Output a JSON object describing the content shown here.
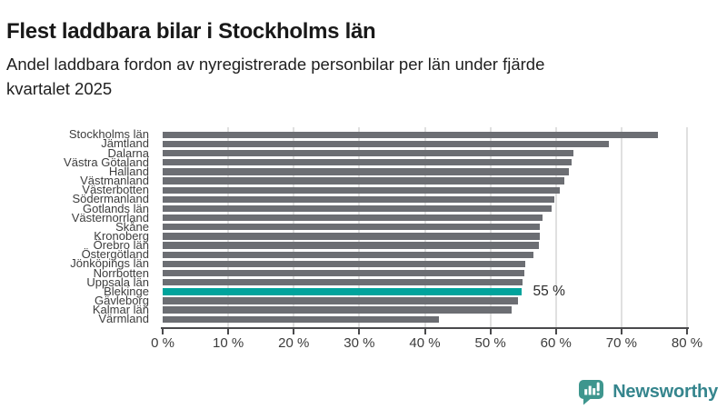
{
  "header": {
    "title": "Flest laddbara bilar i Stockholms län",
    "subtitle": "Andel laddbara fordon av nyregistrerade personbilar per län under fjärde kvartalet 2025"
  },
  "chart_data": {
    "type": "bar",
    "orientation": "horizontal",
    "title": "Flest laddbara bilar i Stockholms län",
    "subtitle_lines": [
      "Andel laddbara fordon av nyregistrerade personbilar per län under fjärde",
      "kvartalet 2025"
    ],
    "categories": [
      "Stockholms län",
      "Jämtland",
      "Dalarna",
      "Västra Götaland",
      "Halland",
      "Västmanland",
      "Västerbotten",
      "Södermanland",
      "Gotlands län",
      "Västernorrland",
      "Skåne",
      "Kronoberg",
      "Örebro län",
      "Östergötland",
      "Jönköpings län",
      "Norrbotten",
      "Uppsala län",
      "Blekinge",
      "Gävleborg",
      "Kalmar län",
      "Värmland"
    ],
    "values": [
      75.6,
      68.1,
      62.6,
      62.4,
      62.0,
      61.3,
      60.6,
      59.7,
      59.3,
      58.0,
      57.6,
      57.5,
      57.4,
      56.5,
      55.3,
      55.2,
      54.9,
      54.7,
      54.2,
      53.3,
      42.1
    ],
    "highlight": {
      "category": "Blekinge",
      "index": 17,
      "value": 54.7,
      "data_label": "55 %"
    },
    "x_tick_labels": [
      "0 %",
      "10 %",
      "20 %",
      "30 %",
      "40 %",
      "50 %",
      "60 %",
      "70 %",
      "80 %"
    ],
    "xlim": [
      0,
      80
    ],
    "xlabel": "",
    "ylabel": "",
    "grid": "vertical",
    "legend": "none",
    "colors": {
      "bar": "#6c6e73",
      "highlight": "#00a39c",
      "gridline": "#e0e0e0",
      "axis": "#4a4a4c",
      "tick_label": "#3c3c3c",
      "category_label": "#3d3d3d"
    }
  },
  "footer": {
    "brand": "Newsworthy",
    "logo_icon": "bar-chart-speech-bubble-icon",
    "icon_color": "#3e968e",
    "brand_color": "#35858d"
  }
}
